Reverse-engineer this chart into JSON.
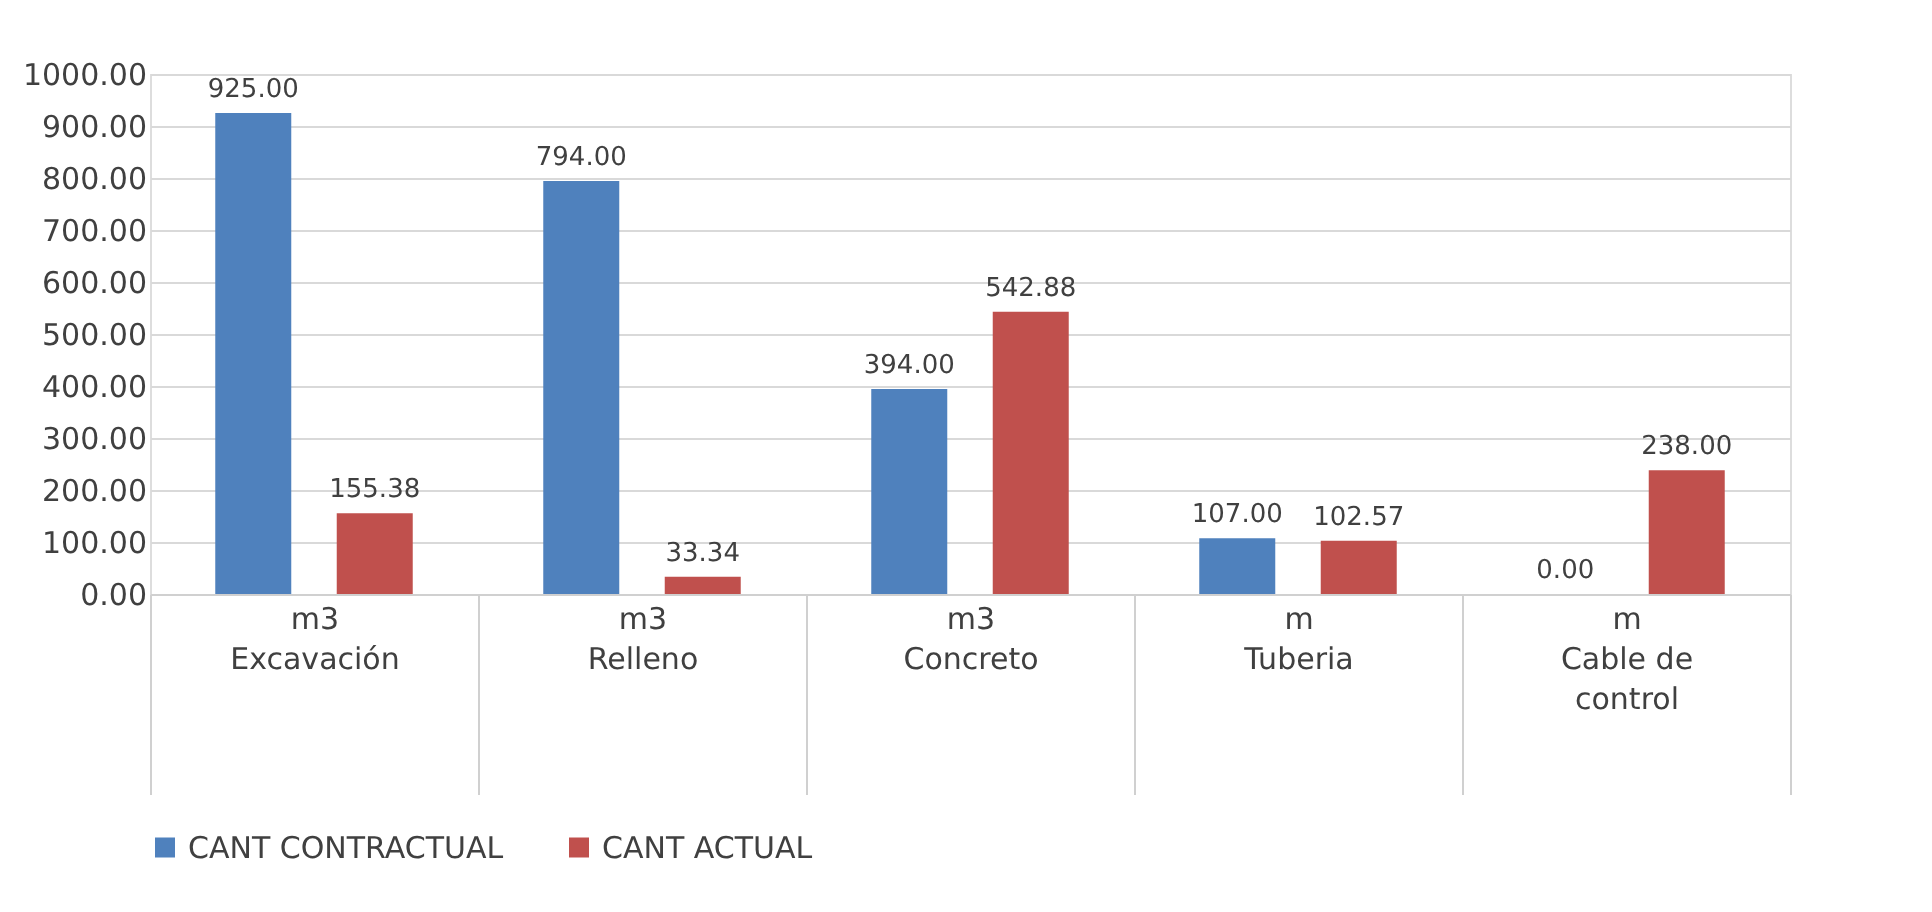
{
  "chart_data": {
    "type": "bar",
    "categories": [
      "m3\n\nExcavación",
      "m3\n\nRelleno",
      "m3\n\nConcreto",
      "m\n\nTuberia",
      "m\n\nCable de\ncontrol"
    ],
    "series": [
      {
        "name": "CANT CONTRACTUAL",
        "color": "#4f81bd",
        "values": [
          925.0,
          794.0,
          394.0,
          107.0,
          0.0
        ]
      },
      {
        "name": "CANT ACTUAL",
        "color": "#c0504d",
        "values": [
          155.38,
          33.34,
          542.88,
          102.57,
          238.0
        ]
      }
    ],
    "value_labels": [
      [
        "925.00",
        "794.00",
        "394.00",
        "107.00",
        "0.00"
      ],
      [
        "155.38",
        "33.34",
        "542.88",
        "102.57",
        "238.00"
      ]
    ],
    "ylim": [
      0,
      1000
    ],
    "yticks": [
      {
        "value": 0,
        "label": "0.00"
      },
      {
        "value": 100,
        "label": "100.00"
      },
      {
        "value": 200,
        "label": "200.00"
      },
      {
        "value": 300,
        "label": "300.00"
      },
      {
        "value": 400,
        "label": "400.00"
      },
      {
        "value": 500,
        "label": "500.00"
      },
      {
        "value": 600,
        "label": "600.00"
      },
      {
        "value": 700,
        "label": "700.00"
      },
      {
        "value": 800,
        "label": "800.00"
      },
      {
        "value": 900,
        "label": "900.00"
      },
      {
        "value": 1000,
        "label": "1000.00"
      }
    ],
    "grid": "y",
    "legend": "bottom"
  }
}
